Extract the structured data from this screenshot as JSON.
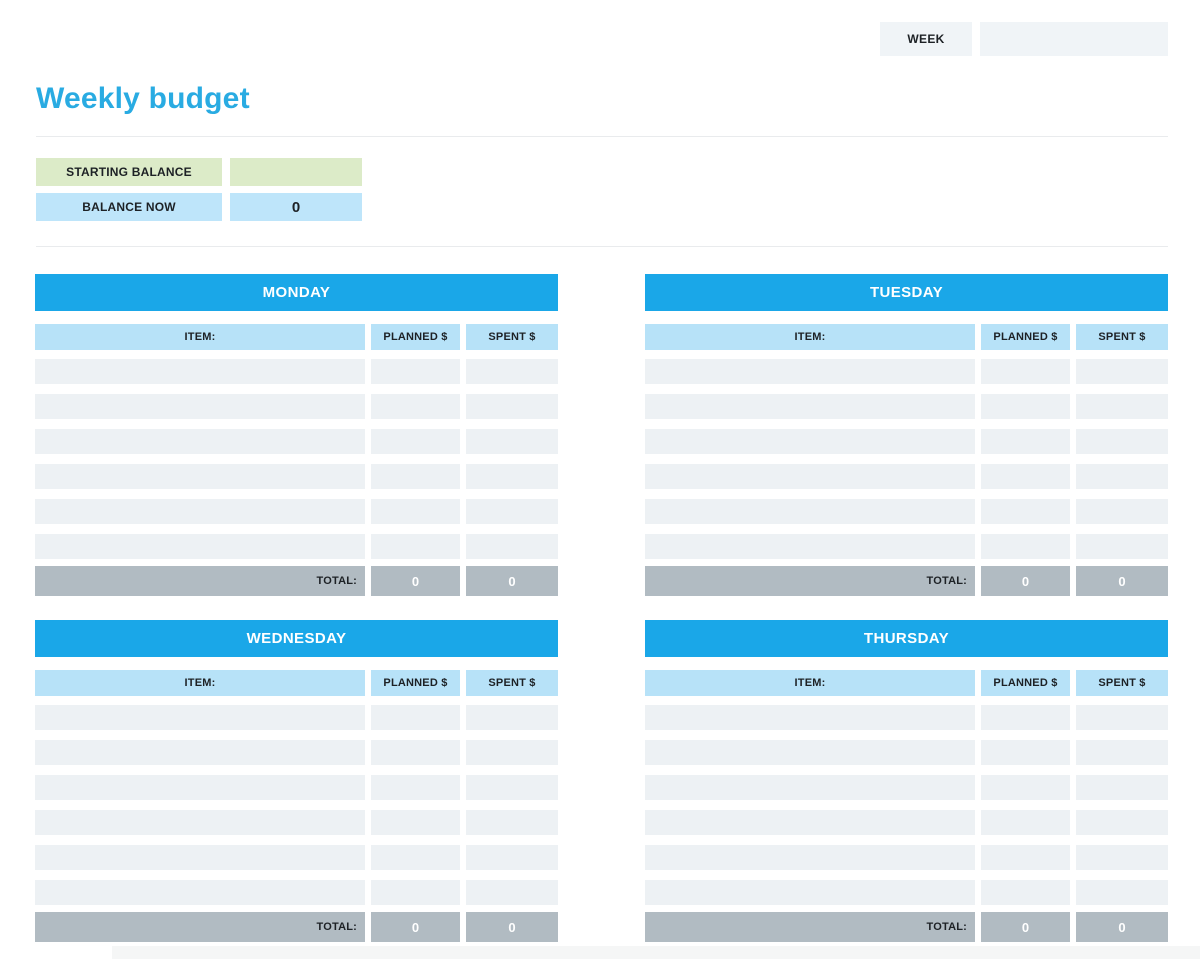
{
  "header": {
    "week_label": "WEEK",
    "week_value": ""
  },
  "page_title": "Weekly budget",
  "balance": {
    "starting_label": "STARTING BALANCE",
    "starting_value": "",
    "now_label": "BALANCE NOW",
    "now_value": "0"
  },
  "table_columns": {
    "item": "ITEM:",
    "planned": "PLANNED $",
    "spent": "SPENT $"
  },
  "total_label": "TOTAL:",
  "days": [
    {
      "name": "MONDAY",
      "rows": 6,
      "total_planned": "0",
      "total_spent": "0"
    },
    {
      "name": "TUESDAY",
      "rows": 6,
      "total_planned": "0",
      "total_spent": "0"
    },
    {
      "name": "WEDNESDAY",
      "rows": 6,
      "total_planned": "0",
      "total_spent": "0"
    },
    {
      "name": "THURSDAY",
      "rows": 6,
      "total_planned": "0",
      "total_spent": "0"
    }
  ],
  "colors": {
    "accent_blue": "#1aa7e8",
    "title_blue": "#29abe2",
    "light_blue": "#b7e2f8",
    "balance_blue": "#bee5fa",
    "light_green": "#dcebc8",
    "row_gray": "#edf1f4",
    "total_gray": "#b1bbc2",
    "field_gray": "#f0f4f7"
  }
}
